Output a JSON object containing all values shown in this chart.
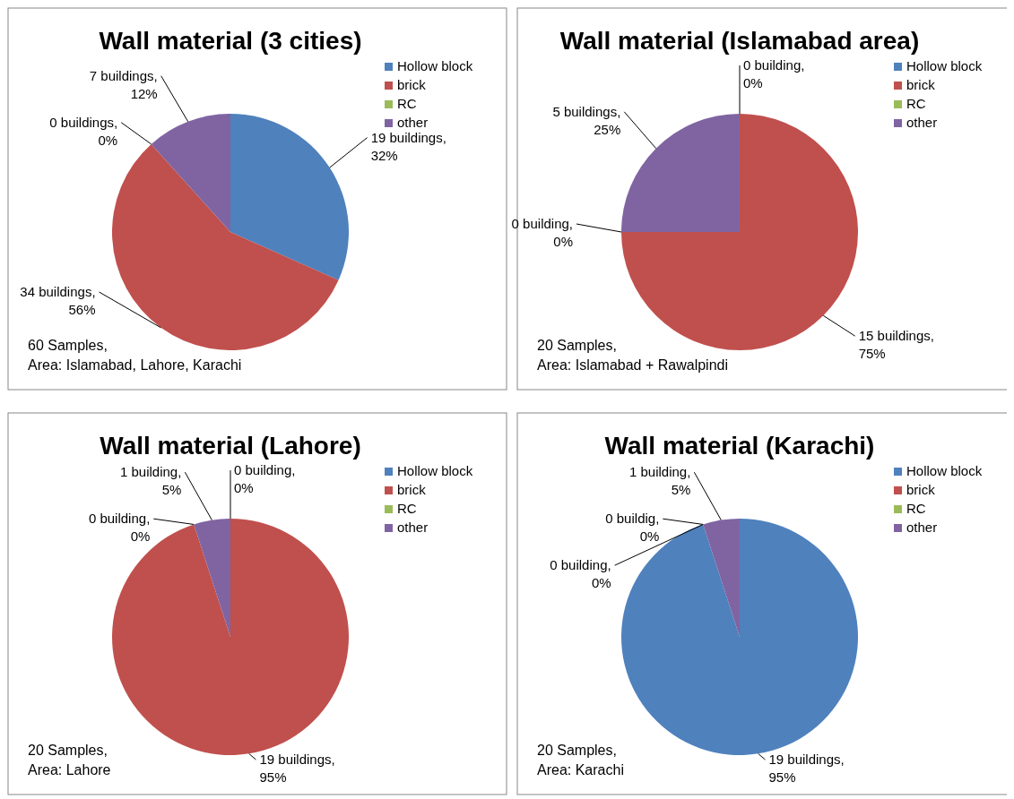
{
  "chart_data": [
    {
      "type": "pie",
      "title": "Wall material (3 cities)",
      "categories": [
        "Hollow block",
        "brick",
        "RC",
        "other"
      ],
      "values": [
        19,
        34,
        0,
        7
      ],
      "colors": [
        "#4f81bd",
        "#c0504d",
        "#9bbb59",
        "#8064a2"
      ],
      "value_labels": [
        "19 buildings, 32%",
        "34 buildings, 56%",
        "0 buildings, 0%",
        "7 buildings, 12%"
      ],
      "legend": "top right",
      "annotations": [
        "60 Samples,",
        "Area: Islamabad, Lahore, Karachi"
      ]
    },
    {
      "type": "pie",
      "title": "Wall material (Islamabad area)",
      "categories": [
        "Hollow block",
        "brick",
        "RC",
        "other"
      ],
      "values": [
        0,
        15,
        0,
        5
      ],
      "colors": [
        "#4f81bd",
        "#c0504d",
        "#9bbb59",
        "#8064a2"
      ],
      "value_labels": [
        "0 building, 0%",
        "15 buildings, 75%",
        "0 building, 0%",
        "5 buildings, 25%"
      ],
      "legend": "top right",
      "annotations": [
        "20 Samples,",
        "Area: Islamabad + Rawalpindi"
      ]
    },
    {
      "type": "pie",
      "title": "Wall material (Lahore)",
      "categories": [
        "Hollow block",
        "brick",
        "RC",
        "other"
      ],
      "values": [
        0,
        19,
        0,
        1
      ],
      "colors": [
        "#4f81bd",
        "#c0504d",
        "#9bbb59",
        "#8064a2"
      ],
      "value_labels": [
        "0 building, 0%",
        "19 buildings, 95%",
        "0 building, 0%",
        "1 building, 5%"
      ],
      "legend": "top right",
      "annotations": [
        "20 Samples,",
        "Area: Lahore"
      ]
    },
    {
      "type": "pie",
      "title": "Wall material (Karachi)",
      "categories": [
        "Hollow block",
        "brick",
        "RC",
        "other"
      ],
      "values": [
        19,
        0,
        0,
        1
      ],
      "colors": [
        "#4f81bd",
        "#c0504d",
        "#9bbb59",
        "#8064a2"
      ],
      "value_labels": [
        "19 buildings, 95%",
        "0 buildig, 0%",
        "0 building, 0%",
        "1 building, 5%"
      ],
      "legend": "top right",
      "annotations": [
        "20 Samples,",
        "Area: Karachi"
      ]
    }
  ]
}
